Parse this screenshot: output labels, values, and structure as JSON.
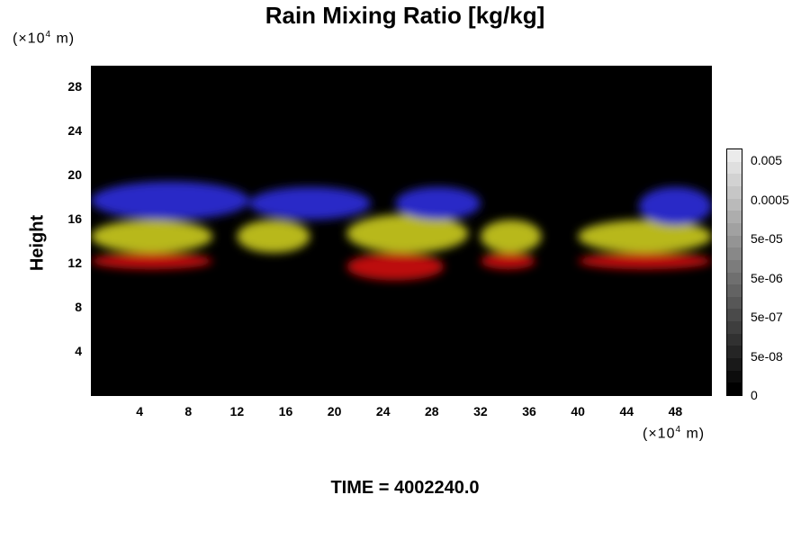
{
  "chart_data": {
    "type": "heatmap",
    "title": "Rain Mixing Ratio [kg/kg]",
    "ylabel": "Height",
    "y_unit": "(×10⁴ m)",
    "x_unit": "(×10⁴ m)",
    "xlim": [
      0,
      51
    ],
    "ylim": [
      0,
      30
    ],
    "x_ticks": [
      "4",
      "8",
      "12",
      "16",
      "20",
      "24",
      "28",
      "32",
      "36",
      "40",
      "44",
      "48"
    ],
    "y_ticks": [
      "4",
      "8",
      "12",
      "16",
      "20",
      "24",
      "28"
    ],
    "colorbar": {
      "labels": [
        "0.005",
        "0.0005",
        "5e-05",
        "5e-06",
        "5e-07",
        "5e-08",
        "0"
      ],
      "segments": 20
    },
    "series": [
      {
        "color": "#cc1010",
        "bands": [
          {
            "x": [
              0,
              10
            ],
            "y": [
              11.5,
              13
            ]
          },
          {
            "x": [
              21,
              29
            ],
            "y": [
              10.5,
              13
            ]
          },
          {
            "x": [
              32,
              36.5
            ],
            "y": [
              11.5,
              13
            ]
          },
          {
            "x": [
              40,
              51
            ],
            "y": [
              11.5,
              13
            ]
          }
        ]
      },
      {
        "color": "#c8c81e",
        "bands": [
          {
            "x": [
              0,
              10
            ],
            "y": [
              13,
              16
            ]
          },
          {
            "x": [
              12,
              18
            ],
            "y": [
              13,
              16
            ]
          },
          {
            "x": [
              21,
              31
            ],
            "y": [
              13,
              16.5
            ]
          },
          {
            "x": [
              32,
              37
            ],
            "y": [
              13,
              16
            ]
          },
          {
            "x": [
              40,
              51
            ],
            "y": [
              13,
              16
            ]
          }
        ]
      },
      {
        "color": "#2b2bd8",
        "bands": [
          {
            "x": [
              0,
              13
            ],
            "y": [
              16,
              19.5
            ]
          },
          {
            "x": [
              13,
              23
            ],
            "y": [
              16,
              19
            ]
          },
          {
            "x": [
              25,
              32
            ],
            "y": [
              16,
              19
            ]
          },
          {
            "x": [
              45,
              51
            ],
            "y": [
              15.5,
              19
            ]
          }
        ]
      }
    ]
  },
  "footer": {
    "time_label": "TIME = 4002240.0"
  }
}
